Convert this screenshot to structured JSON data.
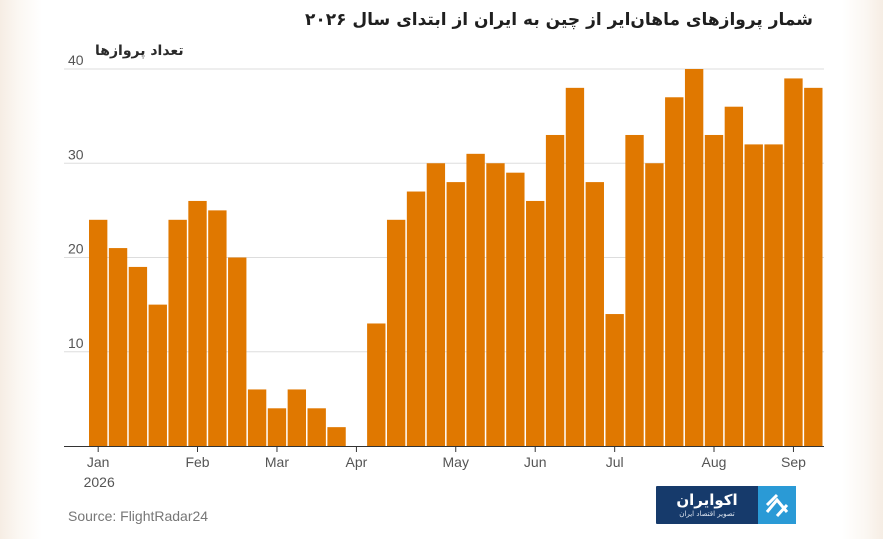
{
  "header": {
    "title": "شمار پروازهای ماهان‌ایر از چین به ایران از ابتدای سال ۲۰۲۶",
    "y_axis_label": "تعداد پروازها"
  },
  "footer": {
    "source": "Source: FlightRadar24",
    "logo_name": "اکوایران",
    "logo_tagline": "تصویر اقتصاد ایران"
  },
  "chart_data": {
    "type": "bar",
    "title": "شمار پروازهای ماهان‌ایر از چین به ایران از ابتدای سال ۲۰۲۶",
    "ylabel": "تعداد پروازها",
    "xlabel": "",
    "bar_color": "#e07800",
    "grid_color": "#dddddd",
    "grid": true,
    "ylim": [
      0,
      40
    ],
    "y_ticks": [
      10,
      20,
      30,
      40
    ],
    "x_tick_labels": [
      {
        "label": "Jan",
        "index": 0,
        "sublabel": "2026"
      },
      {
        "label": "Feb",
        "index": 5
      },
      {
        "label": "Mar",
        "index": 9
      },
      {
        "label": "Apr",
        "index": 13
      },
      {
        "label": "May",
        "index": 18
      },
      {
        "label": "Jun",
        "index": 22
      },
      {
        "label": "Jul",
        "index": 26
      },
      {
        "label": "Aug",
        "index": 31
      },
      {
        "label": "Sep",
        "index": 35
      }
    ],
    "values": [
      24,
      21,
      19,
      15,
      24,
      26,
      25,
      20,
      6,
      4,
      6,
      4,
      2,
      0,
      13,
      24,
      27,
      30,
      28,
      31,
      30,
      29,
      26,
      33,
      38,
      28,
      14,
      33,
      30,
      37,
      40,
      33,
      36,
      32,
      32,
      39,
      38
    ]
  }
}
